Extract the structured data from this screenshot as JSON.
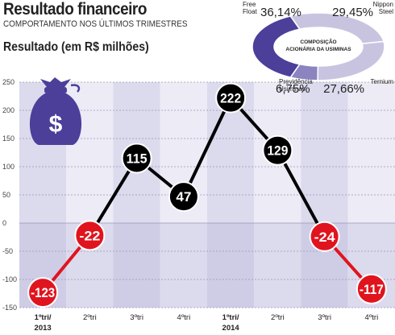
{
  "header": {
    "title": "Resultado financeiro",
    "subtitle": "COMPORTAMENTO NOS ÚLTIMOS TRIMESTRES",
    "ylabel": "Resultado (em R$ milhões)"
  },
  "colors": {
    "positive": "#000000",
    "negative": "#e0141e",
    "band_light": "#ecebf6",
    "band_dark": "#dcdaed",
    "neg_band_light": "#dcdaed",
    "neg_band_dark": "#cfcce6",
    "icon": "#4b3f9a",
    "donut_dark": "#4b3f9a",
    "donut_mid": "#8c84c0",
    "donut_light": "#c8c4e0"
  },
  "icon": "money-bag-icon",
  "chart_data": {
    "type": "line",
    "categories": [
      [
        "1ºtri/",
        "2013"
      ],
      [
        "2ºtri"
      ],
      [
        "3ºtri"
      ],
      [
        "4ºtri"
      ],
      [
        "1ºtri/",
        "2014"
      ],
      [
        "2ºtri"
      ],
      [
        "3ºtri"
      ],
      [
        "4ºtri"
      ]
    ],
    "values": [
      -123,
      -22,
      115,
      47,
      222,
      129,
      -24,
      -117
    ],
    "value_labels": [
      "-123",
      "-22",
      "115",
      "47",
      "222",
      "129",
      "-24",
      "-117"
    ],
    "ylim": [
      -150,
      250
    ],
    "yticks": [
      250,
      200,
      150,
      100,
      50,
      0,
      -50,
      -100,
      -150
    ],
    "ytick_labels": [
      "250",
      "200",
      "150",
      "100",
      "50",
      "0",
      "-50",
      "-100",
      "-150"
    ]
  },
  "composition": {
    "title_lines": [
      "COMPOSIÇÃO",
      "ACIONÁRIA DA USIMINAS"
    ],
    "slices": [
      {
        "name_lines": [
          "Free",
          "Float"
        ],
        "value": 36.14,
        "label": "36,14%"
      },
      {
        "name_lines": [
          "Nippon",
          "Steel"
        ],
        "value": 29.45,
        "label": "29,45%"
      },
      {
        "name_lines": [
          "Ternium"
        ],
        "value": 27.66,
        "label": "27,66%"
      },
      {
        "name_lines": [
          "Previdência",
          "Usiminas"
        ],
        "value": 6.75,
        "label": "6,75%"
      }
    ]
  }
}
